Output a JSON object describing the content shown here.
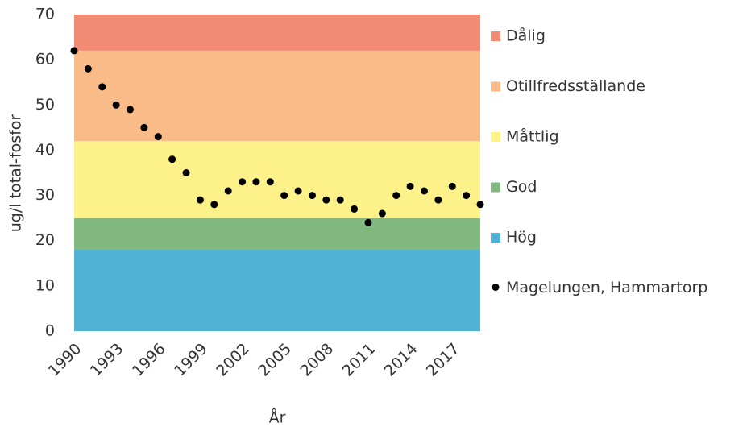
{
  "chart_data": {
    "type": "scatter",
    "xlabel": "År",
    "ylabel": "ug/l total-fosfor",
    "x": [
      1990,
      1991,
      1992,
      1993,
      1994,
      1995,
      1996,
      1997,
      1998,
      1999,
      2000,
      2001,
      2002,
      2003,
      2004,
      2005,
      2006,
      2007,
      2008,
      2009,
      2010,
      2011,
      2012,
      2013,
      2014,
      2015,
      2016,
      2017,
      2018,
      2019
    ],
    "series": [
      {
        "name": "Magelungen, Hammartorp",
        "color": "#000000",
        "values": [
          62,
          58,
          54,
          50,
          49,
          45,
          43,
          38,
          35,
          29,
          28,
          31,
          33,
          33,
          33,
          30,
          31,
          30,
          29,
          29,
          27,
          24,
          26,
          30,
          32,
          31,
          29,
          32,
          30,
          28
        ]
      }
    ],
    "bands": [
      {
        "name": "Dålig",
        "from": 62,
        "to": 70,
        "color": "#f28b73"
      },
      {
        "name": "Otillfredsställande",
        "from": 42,
        "to": 62,
        "color": "#f9bb88"
      },
      {
        "name": "Måttlig",
        "from": 25,
        "to": 42,
        "color": "#fdf28a"
      },
      {
        "name": "God",
        "from": 18,
        "to": 25,
        "color": "#80b880"
      },
      {
        "name": "Hög",
        "from": 0,
        "to": 18,
        "color": "#4fb2d3"
      }
    ],
    "xlim": [
      1990,
      2019
    ],
    "xticks": [
      1990,
      1993,
      1996,
      1999,
      2002,
      2005,
      2008,
      2011,
      2014,
      2017
    ],
    "ylim": [
      0,
      70
    ],
    "yticks": [
      0,
      10,
      20,
      30,
      40,
      50,
      60,
      70
    ],
    "legend": "right"
  }
}
